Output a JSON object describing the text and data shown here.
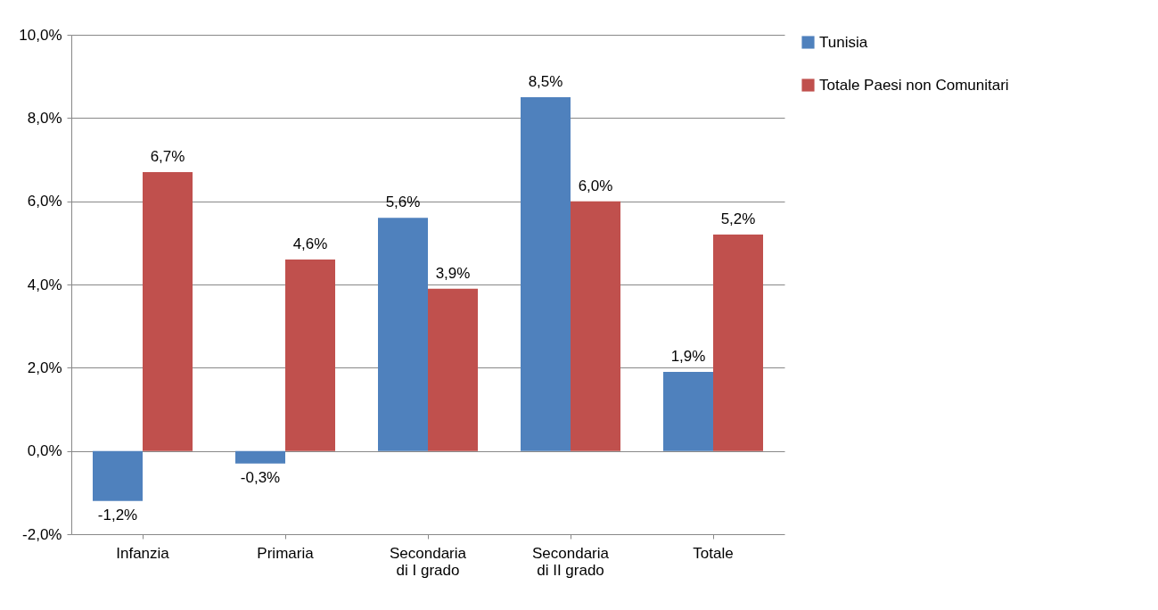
{
  "chart_data": {
    "type": "bar",
    "categories": [
      "Infanzia",
      "Primaria",
      "Secondaria di I grado",
      "Secondaria di II grado",
      "Totale"
    ],
    "series": [
      {
        "name": "Tunisia",
        "color": "#4f81bd",
        "values": [
          -1.2,
          -0.3,
          5.6,
          8.5,
          1.9
        ],
        "value_labels": [
          "-1,2%",
          "-0,3%",
          "5,6%",
          "8,5%",
          "1,9%"
        ]
      },
      {
        "name": "Totale Paesi non Comunitari",
        "color": "#c0504d",
        "values": [
          6.7,
          4.6,
          3.9,
          6.0,
          5.2
        ],
        "value_labels": [
          "6,7%",
          "4,6%",
          "3,9%",
          "6,0%",
          "5,2%"
        ]
      }
    ],
    "ylim": [
      -2,
      10
    ],
    "yticks": [
      {
        "value": -2,
        "label": "-2,0%"
      },
      {
        "value": 0,
        "label": "0,0%"
      },
      {
        "value": 2,
        "label": "2,0%"
      },
      {
        "value": 4,
        "label": "4,0%"
      },
      {
        "value": 6,
        "label": "6,0%"
      },
      {
        "value": 8,
        "label": "8,0%"
      },
      {
        "value": 10,
        "label": "10,0%"
      }
    ],
    "grid": "y",
    "legend": "right"
  }
}
